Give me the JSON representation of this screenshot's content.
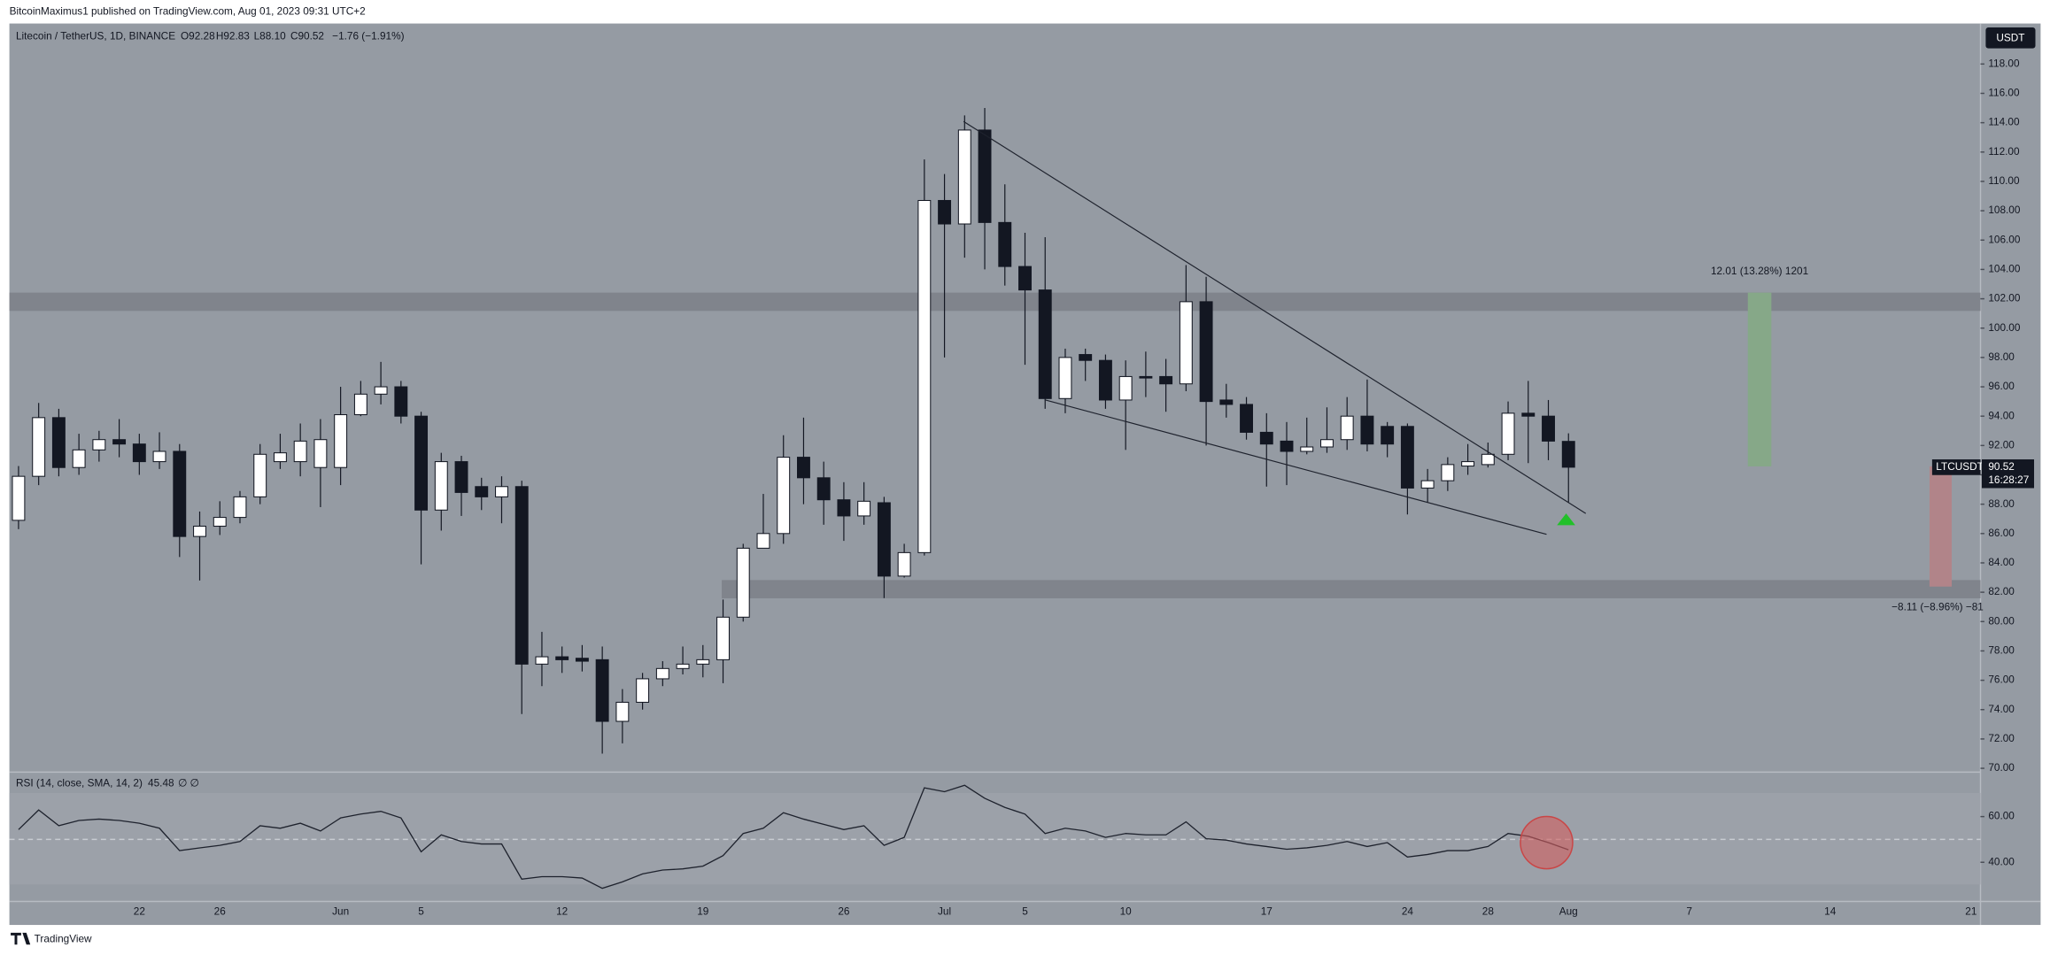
{
  "header": "BitcoinMaximus1 published on TradingView.com, Aug 01, 2023 09:31 UTC+2",
  "footer": "TradingView",
  "chart_data": {
    "type": "candlestick",
    "title": "Litecoin / TetherUS, 1D, BINANCE",
    "ohlc_text": [
      "O92.28",
      "H92.83",
      "L88.10",
      "C90.52",
      "−1.76 (−1.91%)"
    ],
    "currency": "USDT",
    "symbol": "LTCUSDT",
    "last_price": "90.52",
    "countdown": "16:28:27",
    "annotations": [
      "12.01 (13.28%) 1201",
      "−8.11 (−8.96%) −81"
    ],
    "categories": [
      null,
      null,
      null,
      null,
      null,
      null,
      "22",
      null,
      null,
      null,
      "26",
      null,
      null,
      null,
      null,
      null,
      "Jun",
      null,
      null,
      null,
      "5",
      null,
      null,
      null,
      null,
      null,
      null,
      "12",
      null,
      null,
      null,
      null,
      null,
      null,
      "19",
      null,
      null,
      null,
      null,
      null,
      null,
      "26",
      null,
      null,
      null,
      null,
      "Jul",
      null,
      null,
      null,
      "5",
      null,
      null,
      null,
      null,
      "10",
      null,
      null,
      null,
      null,
      null,
      null,
      "17",
      null,
      null,
      null,
      null,
      null,
      null,
      "24",
      null,
      null,
      null,
      "28",
      null,
      null,
      null,
      "Aug",
      null,
      null,
      null,
      null,
      null,
      "7",
      null,
      null,
      null,
      null,
      null,
      null,
      "14",
      null,
      null,
      null,
      null,
      null,
      null,
      "21"
    ],
    "open": [
      86.9,
      89.9,
      93.9,
      90.5,
      91.7,
      92.4,
      92.1,
      90.9,
      91.6,
      85.8,
      86.5,
      87.1,
      88.5,
      90.9,
      90.9,
      90.5,
      90.5,
      94.1,
      95.5,
      96,
      94,
      87.6,
      90.9,
      89.2,
      88.5,
      89.2,
      77.1,
      77.6,
      77.5,
      77.4,
      73.2,
      74.5,
      76.1,
      76.8,
      77.1,
      77.4,
      80.3,
      85,
      86,
      91.2,
      89.8,
      88.3,
      87.2,
      88.1,
      83.1,
      84.7,
      108.7,
      107.1,
      113.5,
      107.2,
      104.2,
      102.6,
      95.2,
      98.2,
      97.8,
      95.1,
      96.7,
      96.7,
      96.2,
      101.8,
      95.1,
      94.8,
      92.9,
      92.3,
      91.6,
      91.9,
      92.4,
      94,
      93.3,
      93.3,
      89.1,
      89.6,
      90.6,
      90.7,
      91.4,
      94.2,
      94,
      92.28,
      null,
      null,
      null,
      null,
      null,
      null,
      null,
      null,
      null,
      null,
      null,
      null,
      null,
      null,
      null,
      null,
      null,
      null,
      null,
      null
    ],
    "high": [
      90.6,
      94.9,
      94.5,
      92.8,
      93,
      93.8,
      92.8,
      92.9,
      92.1,
      87.5,
      88.2,
      88.9,
      92.1,
      92.8,
      93.5,
      93.8,
      96,
      96.4,
      97.7,
      96.4,
      94.3,
      91.5,
      91.3,
      89.8,
      89.9,
      89.6,
      79.3,
      78.3,
      78.4,
      78.3,
      75.4,
      76.5,
      77.3,
      78.3,
      78.4,
      81.5,
      85.3,
      88.7,
      92.7,
      93.9,
      90.9,
      89.5,
      89.5,
      88.5,
      85.3,
      111.5,
      110.5,
      114.5,
      115,
      109.8,
      106.5,
      106.2,
      98.6,
      98.6,
      98.2,
      97.8,
      98.4,
      97.9,
      104.3,
      103.5,
      96.2,
      95.3,
      94.2,
      93.6,
      93.9,
      94.6,
      95.3,
      96.5,
      93.6,
      93.5,
      90.4,
      91.2,
      92.1,
      92.2,
      95,
      96.4,
      95.1,
      92.83,
      null,
      null,
      null,
      null,
      null,
      null,
      null,
      null,
      null,
      null,
      null,
      null,
      null,
      null,
      null,
      null,
      null,
      null,
      null,
      null
    ],
    "low": [
      86.3,
      89.3,
      89.9,
      90,
      90.9,
      91.2,
      90,
      90.4,
      84.4,
      82.8,
      85.9,
      86.7,
      88,
      90.4,
      89.9,
      87.8,
      89.3,
      94,
      94.8,
      93.5,
      83.9,
      86.2,
      87.2,
      87.6,
      86.7,
      73.7,
      75.6,
      76.5,
      76.6,
      71,
      71.7,
      74,
      75.6,
      76.4,
      76.2,
      75.8,
      80,
      85,
      85.3,
      88,
      86.6,
      85.5,
      86.6,
      81.6,
      83,
      84.5,
      98,
      104.8,
      104,
      102.9,
      97.5,
      94.5,
      94.2,
      96.4,
      94.5,
      91.7,
      95.3,
      94.3,
      95.7,
      92,
      93.9,
      92.4,
      89.2,
      89.3,
      91.4,
      91.5,
      91.7,
      91.6,
      91.2,
      87.3,
      88.1,
      88.9,
      90,
      90.5,
      91,
      90.8,
      91,
      88.1,
      null,
      null,
      null,
      null,
      null,
      null,
      null,
      null,
      null,
      null,
      null,
      null,
      null,
      null,
      null,
      null,
      null,
      null,
      null,
      null
    ],
    "close": [
      89.9,
      93.9,
      90.5,
      91.7,
      92.4,
      92.1,
      90.9,
      91.6,
      85.8,
      86.5,
      87.1,
      88.5,
      91.4,
      91.5,
      92.3,
      92.4,
      94.1,
      95.5,
      96,
      94,
      87.6,
      90.9,
      88.8,
      88.5,
      89.2,
      77.1,
      77.6,
      77.4,
      77.3,
      73.2,
      74.5,
      76.1,
      76.8,
      77.1,
      77.4,
      80.3,
      85,
      86,
      91.2,
      89.8,
      88.3,
      87.2,
      88.2,
      83.1,
      84.7,
      108.7,
      107.1,
      113.5,
      107.2,
      104.2,
      102.6,
      95.2,
      98,
      97.8,
      95.1,
      96.7,
      96.6,
      96.2,
      101.8,
      95,
      94.8,
      92.9,
      92.1,
      91.6,
      91.9,
      92.4,
      94,
      92.1,
      92.1,
      89.1,
      89.6,
      90.7,
      90.9,
      91.4,
      94.2,
      94,
      92.3,
      90.52,
      null,
      null,
      null,
      null,
      null,
      null,
      null,
      null,
      null,
      null,
      null,
      null,
      null,
      null,
      null,
      null,
      null,
      null,
      null,
      null
    ],
    "colors": {
      "up": "#ffffff",
      "down": "#131722"
    },
    "ylim": [
      69.83,
      120.76
    ],
    "yticks": [
      {
        "value": 70,
        "label": "70.00"
      },
      {
        "value": 72,
        "label": "72.00"
      },
      {
        "value": 74,
        "label": "74.00"
      },
      {
        "value": 76,
        "label": "76.00"
      },
      {
        "value": 78,
        "label": "78.00"
      },
      {
        "value": 80,
        "label": "80.00"
      },
      {
        "value": 82,
        "label": "82.00"
      },
      {
        "value": 84,
        "label": "84.00"
      },
      {
        "value": 86,
        "label": "86.00"
      },
      {
        "value": 88,
        "label": "88.00"
      },
      {
        "value": 90,
        "label": "90.00"
      },
      {
        "value": 92,
        "label": "92.00"
      },
      {
        "value": 94,
        "label": "94.00"
      },
      {
        "value": 96,
        "label": "96.00"
      },
      {
        "value": 98,
        "label": "98.00"
      },
      {
        "value": 100,
        "label": "100.00"
      },
      {
        "value": 102,
        "label": "102.00"
      },
      {
        "value": 104,
        "label": "104.00"
      },
      {
        "value": 106,
        "label": "106.00"
      },
      {
        "value": 108,
        "label": "108.00"
      },
      {
        "value": 110,
        "label": "110.00"
      },
      {
        "value": 112,
        "label": "112.00"
      },
      {
        "value": 114,
        "label": "114.00"
      },
      {
        "value": 116,
        "label": "116.00"
      },
      {
        "value": 118,
        "label": "118.00"
      }
    ],
    "indicator": {
      "type": "line",
      "title": "RSI (14, close, SMA, 14, 2)",
      "value_label": "45.48",
      "extra": "∅ ∅",
      "color": "#1e222d",
      "values": [
        54.3,
        62.9,
        56,
        58.3,
        58.9,
        58.3,
        57.1,
        54.9,
        45.1,
        46.3,
        47.4,
        49.1,
        56,
        54.9,
        57.1,
        53.7,
        59.4,
        61.1,
        62.3,
        59.4,
        44.6,
        52,
        49.1,
        48,
        48,
        32.6,
        33.7,
        33.7,
        33.1,
        28.6,
        31.4,
        34.9,
        36.6,
        37.1,
        38.3,
        42.9,
        52.6,
        54.9,
        61.7,
        58.9,
        56.6,
        54.3,
        56,
        47.4,
        50.9,
        72.6,
        70.9,
        73.7,
        68,
        64,
        61.1,
        52.6,
        54.9,
        53.7,
        50.9,
        52.6,
        52,
        52,
        57.7,
        50.3,
        49.7,
        48,
        46.9,
        45.7,
        46.3,
        47.4,
        49.1,
        46.9,
        48.6,
        42.3,
        43.4,
        45.1,
        45.1,
        46.9,
        52.6,
        51.4,
        48.6,
        45.48,
        null,
        null,
        null,
        null,
        null,
        null,
        null,
        null,
        null,
        null,
        null,
        null,
        null,
        null,
        null,
        null,
        null,
        null,
        null,
        null
      ],
      "ylim": [
        24,
        78.9
      ],
      "yticks": [
        {
          "value": 40,
          "label": "40.00"
        },
        {
          "value": 60,
          "label": "60.00"
        }
      ]
    }
  }
}
